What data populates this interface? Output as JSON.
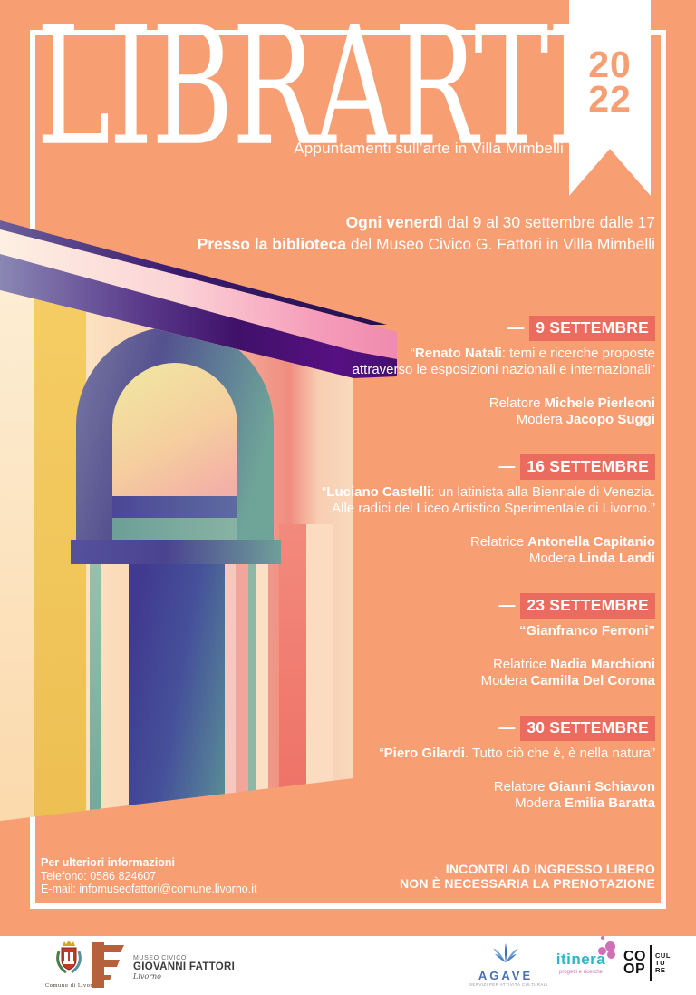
{
  "poster": {
    "title": "LIBRARTI",
    "year_top": "20",
    "year_bottom": "22",
    "subtitle": "Appuntamenti sull’arte in Villa Mimbelli",
    "date_dash": "—",
    "intro": {
      "line1_bold": "Ogni venerdì",
      "line1_rest": " dal 9 al 30 settembre dalle 17",
      "line2_bold": "Presso la biblioteca",
      "line2_rest": " del Museo Civico G. Fattori in Villa Mimbelli"
    },
    "events": [
      {
        "date": "9 SETTEMBRE",
        "title_segments": [
          {
            "text": "“",
            "bold": false
          },
          {
            "text": "Renato Natali",
            "bold": true
          },
          {
            "text": ": temi e ricerche proposte\nattraverso le esposizioni nazionali e internazionali”",
            "bold": false
          }
        ],
        "speaker_role": "Relatore",
        "speaker_name": "Michele Pierleoni",
        "moderator_label": "Modera",
        "moderator_name": "Jacopo Suggi"
      },
      {
        "date": "16 SETTEMBRE",
        "title_segments": [
          {
            "text": "“",
            "bold": false
          },
          {
            "text": "Luciano Castelli",
            "bold": true
          },
          {
            "text": ": un latinista alla Biennale di Venezia.\nAlle radici del Liceo Artistico Sperimentale di Livorno.”",
            "bold": false
          }
        ],
        "speaker_role": "Relatrice",
        "speaker_name": "Antonella Capitanio",
        "moderator_label": "Modera",
        "moderator_name": "Linda Landi"
      },
      {
        "date": "23 SETTEMBRE",
        "title_segments": [
          {
            "text": "“Gianfranco Ferroni”",
            "bold": true
          }
        ],
        "speaker_role": "Relatrice",
        "speaker_name": "Nadia Marchioni",
        "moderator_label": "Modera",
        "moderator_name": "Camilla Del Corona"
      },
      {
        "date": "30 SETTEMBRE",
        "title_segments": [
          {
            "text": "“",
            "bold": false
          },
          {
            "text": "Piero Gilardi",
            "bold": true
          },
          {
            "text": ". Tutto ciò che è, è nella natura”",
            "bold": false
          }
        ],
        "speaker_role": "Relatore",
        "speaker_name": "Gianni Schiavon",
        "moderator_label": "Modera",
        "moderator_name": "Emilia Baratta"
      }
    ],
    "contact": {
      "heading": "Per ulteriori informazioni",
      "phone": "Telefono: 0586 824607",
      "email": "E-mail: infomuseofattori@comune.livorno.it"
    },
    "notice": {
      "line1": "INCONTRI AD INGRESSO LIBERO",
      "line2": "NON È NECESSARIA LA PRENOTAZIONE"
    },
    "colors": {
      "background": "#F89E73",
      "highlight": "#EC6B5F",
      "frame": "#FFFFFF",
      "ribbon_year_text": "#F89E73"
    }
  },
  "footer": {
    "comune": {
      "caption": "Comune di Livorno"
    },
    "museo": {
      "line1": "MUSEO CIVICO",
      "line2": "GIOVANNI FATTORI",
      "line3": "Livorno"
    },
    "agave": {
      "label": "AGAVE",
      "sub": "SERVIZI PER ATTIVITÀ CULTURALI"
    },
    "itinera": {
      "label": "itinera",
      "sub": "progetti e ricerche"
    },
    "coopculture": {
      "co": "CO",
      "op": "OP",
      "cul": "CUL",
      "tu": "TU",
      "re": "RE"
    }
  }
}
